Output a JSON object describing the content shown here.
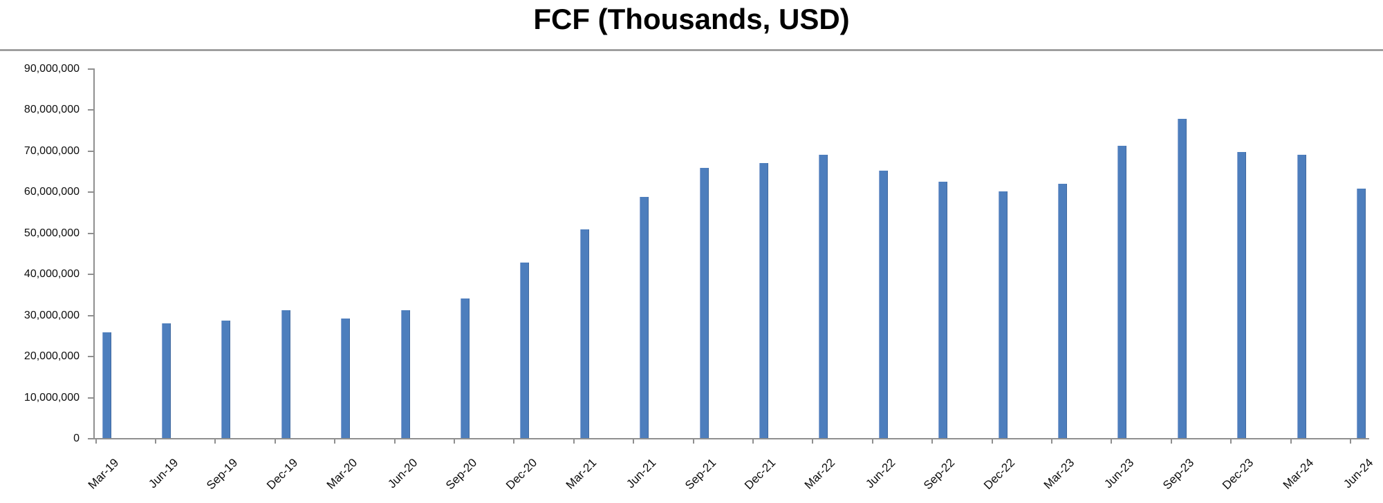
{
  "title": "FCF (Thousands, USD)",
  "colors": {
    "bar_fill": "#4d7ebd",
    "bar_edge_light": "#8aa5d2",
    "bar_edge_dark": "#40699f",
    "axis_line": "#8f8f8f",
    "separator_line": "#9e9e9e",
    "text": "#0d0d0d"
  },
  "chart_data": {
    "type": "bar",
    "title": "FCF (Thousands, USD)",
    "categories": [
      "Mar-19",
      "Jun-19",
      "Sep-19",
      "Dec-19",
      "Mar-20",
      "Jun-20",
      "Sep-20",
      "Dec-20",
      "Mar-21",
      "Jun-21",
      "Sep-21",
      "Dec-21",
      "Mar-22",
      "Jun-22",
      "Sep-22",
      "Dec-22",
      "Mar-23",
      "Jun-23",
      "Sep-23",
      "Dec-23",
      "Mar-24",
      "Jun-24"
    ],
    "values": [
      25700000,
      27900000,
      28600000,
      31100000,
      29100000,
      31100000,
      34000000,
      42700000,
      50800000,
      58700000,
      65800000,
      67000000,
      69000000,
      65100000,
      62400000,
      60100000,
      61900000,
      71200000,
      77700000,
      69700000,
      69000000,
      60700000
    ],
    "xlabel": "",
    "ylabel": "",
    "ylim": [
      0,
      90000000
    ],
    "ytick_interval": 10000000,
    "ytick_labels": [
      "0",
      "10,000,000",
      "20,000,000",
      "30,000,000",
      "40,000,000",
      "50,000,000",
      "60,000,000",
      "70,000,000",
      "80,000,000",
      "90,000,000"
    ],
    "grid": false,
    "legend": false,
    "bar_color": "#4d7ebd",
    "x_tick_position": "category-start",
    "label_rotation_deg": 45
  }
}
